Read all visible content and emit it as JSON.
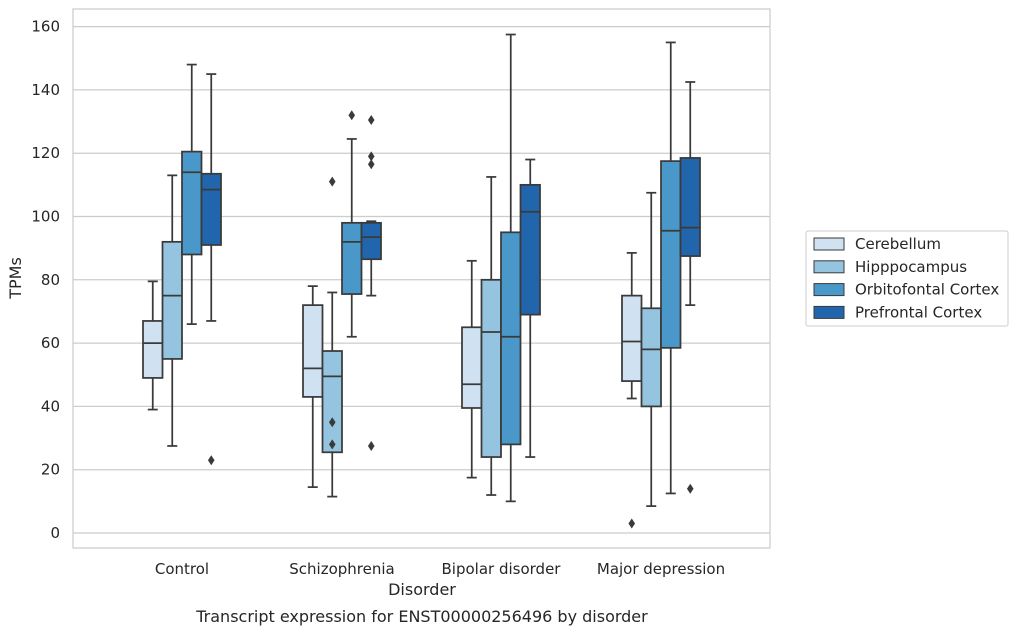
{
  "caption": "Transcript expression for ENST00000256496 by disorder",
  "chart_data": {
    "type": "box",
    "xlabel": "Disorder",
    "ylabel": "TPMs",
    "ylim": [
      -5,
      165
    ],
    "yticks": [
      0,
      20,
      40,
      60,
      80,
      100,
      120,
      140,
      160
    ],
    "grid": true,
    "legend_position": "right",
    "categories": [
      "Control",
      "Schizophrenia",
      "Bipolar disorder",
      "Major depression"
    ],
    "series": [
      {
        "name": "Cerebellum",
        "color": "#d0e1f2",
        "boxes": [
          {
            "min": 39,
            "q1": 49,
            "median": 60,
            "q3": 67,
            "max": 79.5,
            "outliers": []
          },
          {
            "min": 14.5,
            "q1": 43,
            "median": 52,
            "q3": 72,
            "max": 78,
            "outliers": []
          },
          {
            "min": 17.5,
            "q1": 39.5,
            "median": 47,
            "q3": 65,
            "max": 86,
            "outliers": []
          },
          {
            "min": 42.5,
            "q1": 48,
            "median": 60.5,
            "q3": 75,
            "max": 88.5,
            "outliers": [
              3
            ]
          }
        ]
      },
      {
        "name": "Hipppocampus",
        "color": "#94c4df",
        "boxes": [
          {
            "min": 27.5,
            "q1": 55,
            "median": 75,
            "q3": 92,
            "max": 113,
            "outliers": []
          },
          {
            "min": 11.5,
            "q1": 25.5,
            "median": 49.5,
            "q3": 57.5,
            "max": 76,
            "outliers": [
              111,
              35,
              28
            ]
          },
          {
            "min": 12,
            "q1": 24,
            "median": 63.5,
            "q3": 80,
            "max": 112.5,
            "outliers": []
          },
          {
            "min": 8.5,
            "q1": 40,
            "median": 58,
            "q3": 71,
            "max": 107.5,
            "outliers": []
          }
        ]
      },
      {
        "name": "Orbitofontal Cortex",
        "color": "#4a98c9",
        "boxes": [
          {
            "min": 66,
            "q1": 88,
            "median": 114,
            "q3": 120.5,
            "max": 148,
            "outliers": []
          },
          {
            "min": 62,
            "q1": 75.5,
            "median": 92,
            "q3": 98,
            "max": 124.5,
            "outliers": [
              132
            ]
          },
          {
            "min": 10,
            "q1": 28,
            "median": 62,
            "q3": 95,
            "max": 157.5,
            "outliers": []
          },
          {
            "min": 12.5,
            "q1": 58.5,
            "median": 95.5,
            "q3": 117.5,
            "max": 155,
            "outliers": []
          }
        ]
      },
      {
        "name": "Prefrontal Cortex",
        "color": "#2166ac",
        "boxes": [
          {
            "min": 67,
            "q1": 91,
            "median": 108.5,
            "q3": 113.5,
            "max": 145,
            "outliers": [
              23
            ]
          },
          {
            "min": 75,
            "q1": 86.5,
            "median": 93.5,
            "q3": 98,
            "max": 98.5,
            "outliers": [
              130.5,
              119,
              116.5,
              27.5
            ]
          },
          {
            "min": 24,
            "q1": 69,
            "median": 101.5,
            "q3": 110,
            "max": 118,
            "outliers": []
          },
          {
            "min": 72,
            "q1": 87.5,
            "median": 96.5,
            "q3": 118.5,
            "max": 142.5,
            "outliers": [
              14
            ]
          }
        ]
      }
    ]
  }
}
